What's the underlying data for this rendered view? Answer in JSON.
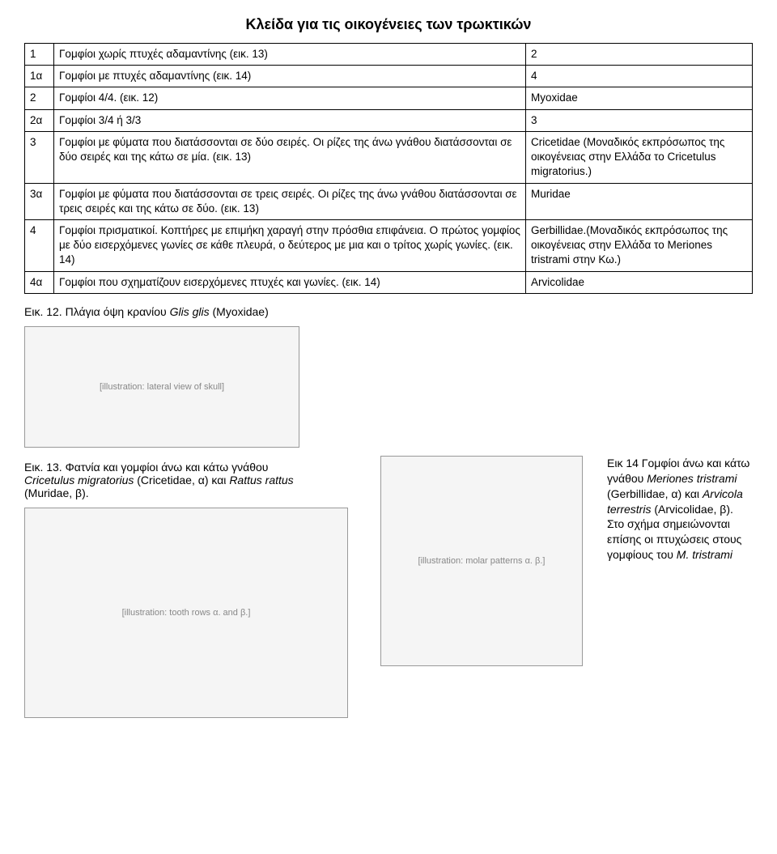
{
  "title": "Κλείδα για τις οικογένειες των τρωκτικών",
  "rows": [
    {
      "idx": "1",
      "desc": "Γομφίοι χωρίς πτυχές αδαμαντίνης (εικ. 13)",
      "res": "2"
    },
    {
      "idx": "1α",
      "desc": "Γομφίοι με πτυχές αδαμαντίνης (εικ. 14)",
      "res": "4"
    },
    {
      "idx": "2",
      "desc": "Γομφίοι 4/4. (εικ. 12)",
      "res": "Myoxidae"
    },
    {
      "idx": "2α",
      "desc": "Γομφίοι 3/4 ή 3/3",
      "res": "3"
    },
    {
      "idx": "3",
      "desc": "Γομφίοι με φύματα που διατάσσονται σε δύο σειρές. Οι ρίζες της άνω γνάθου διατάσσονται σε δύο σειρές και της κάτω σε μία. (εικ. 13)",
      "res": "Cricetidae (Μοναδικός εκπρόσωπος της οικογένειας στην Ελλάδα το Cricetulus migratorius.)"
    },
    {
      "idx": "3α",
      "desc": "Γομφίοι με φύματα που διατάσσονται σε τρεις σειρές. Οι ρίζες της άνω γνάθου διατάσσονται σε τρεις σειρές και της κάτω σε δύο. (εικ. 13)",
      "res": "Muridae"
    },
    {
      "idx": "4",
      "desc": "Γομφίοι πρισματικοί. Κοπτήρες με επιμήκη χαραγή στην πρόσθια επιφάνεια. Ο πρώτος γομφίος με δύο εισερχόμενες γωνίες σε κάθε πλευρά, ο δεύτερος με μια και ο τρίτος χωρίς γωνίες. (εικ. 14)",
      "res": "Gerbillidae.(Μοναδικός εκπρόσωπος της οικογένειας στην Ελλάδα το Meriones tristrami στην Κω.)"
    },
    {
      "idx": "4α",
      "desc": "Γομφίοι που σχηματίζουν εισερχόμενες πτυχές και γωνίες. (εικ. 14)",
      "res": "Arvicolidae"
    }
  ],
  "fig12": {
    "caption_plain": "Εικ. 12. Πλάγια όψη κρανίου ",
    "caption_italic": "Glis glis",
    "caption_tail": " (Myoxidae)",
    "placeholder": "[illustration: lateral view of skull]"
  },
  "fig13": {
    "line1": "Εικ. 13. Φατνία και γομφίοι άνω και κάτω γνάθου",
    "line2_it1": "Cricetulus migratorius",
    "line2_mid": " (Cricetidae, α) και ",
    "line2_it2": "Rattus rattus",
    "line3": "(Muridae, β).",
    "placeholder": "[illustration: tooth rows α. and β.]"
  },
  "fig14": {
    "text_parts": {
      "p1": "Εικ 14 Γομφίοι άνω και κάτω γνάθου ",
      "it1": "Meriones tristrami",
      "p2": " (Gerbillidae, α) και ",
      "it2": "Arvicola terrestris",
      "p3": " (Arvicolidae, β). Στο σχήμα σημειώνονται επίσης οι πτυχώσεις στους γομφίους του ",
      "it3": "M. tristrami"
    },
    "placeholder": "[illustration: molar patterns α. β.]"
  }
}
